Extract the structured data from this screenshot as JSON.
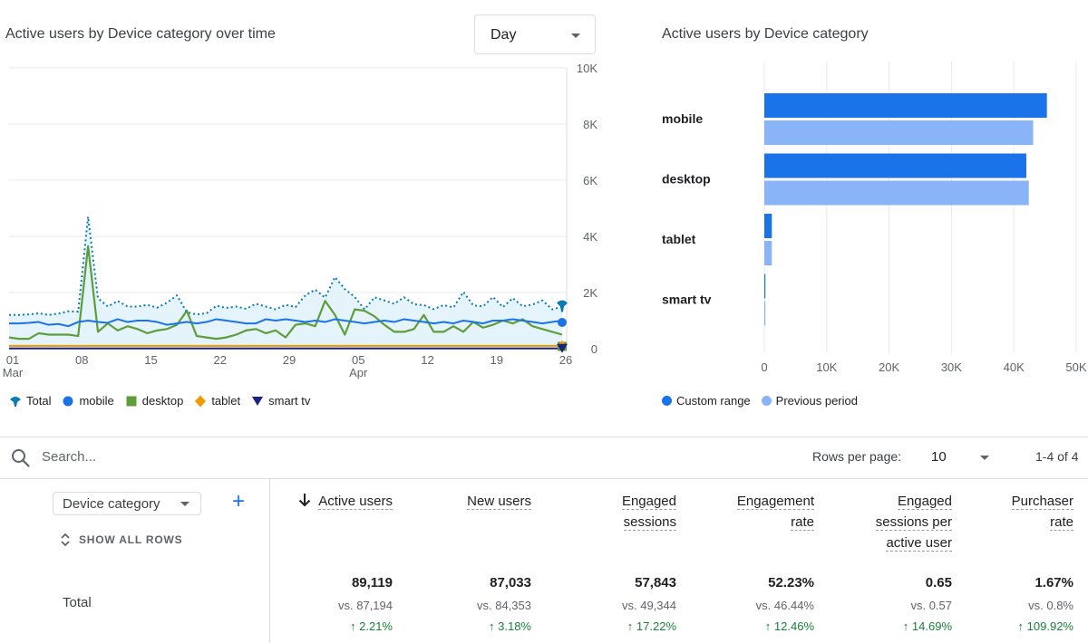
{
  "line_card": {
    "title": "Active users by Device category over time",
    "granularity": "Day",
    "legend": [
      {
        "label": "Total",
        "color": "#0b7cb3",
        "icon": "total-pin-icon"
      },
      {
        "label": "mobile",
        "color": "#1a73e8",
        "icon": "circle-icon"
      },
      {
        "label": "desktop",
        "color": "#5e9e3a",
        "icon": "square-icon"
      },
      {
        "label": "tablet",
        "color": "#f29900",
        "icon": "diamond-icon"
      },
      {
        "label": "smart tv",
        "color": "#1a237e",
        "icon": "triangle-down-icon"
      }
    ]
  },
  "bar_card": {
    "title": "Active users by Device category",
    "legend": [
      {
        "label": "Custom range",
        "color": "#1a73e8"
      },
      {
        "label": "Previous period",
        "color": "#8ab4f8"
      }
    ]
  },
  "chart_data": [
    {
      "type": "line",
      "title": "Active users by Device category over time",
      "x_ticks": [
        "01\nMar",
        "08",
        "15",
        "22",
        "29",
        "05\nApr",
        "12",
        "19",
        "26"
      ],
      "y_ticks": [
        "0",
        "2K",
        "4K",
        "6K",
        "8K",
        "10K"
      ],
      "ylim": [
        0,
        10000
      ],
      "x_range_days": [
        1,
        57
      ],
      "series": [
        {
          "name": "Total",
          "color": "#0b7cb3",
          "style": "dotted-area",
          "values": [
            1200,
            1200,
            1220,
            1260,
            1200,
            1250,
            1330,
            1320,
            4700,
            1800,
            1500,
            1700,
            1500,
            1500,
            1560,
            1460,
            1640,
            1900,
            1300,
            1220,
            1260,
            1530,
            1450,
            1500,
            1420,
            1600,
            1500,
            1400,
            1560,
            1480,
            1900,
            2100,
            1820,
            2550,
            2120,
            1840,
            1400,
            1830,
            1720,
            1600,
            1830,
            1580,
            1550,
            1410,
            1550,
            1470,
            2020,
            1540,
            1510,
            1840,
            1480,
            1800,
            1510,
            1570,
            1720,
            1400,
            1500
          ]
        },
        {
          "name": "mobile",
          "color": "#1a73e8",
          "style": "solid",
          "values": [
            900,
            900,
            920,
            950,
            850,
            880,
            800,
            950,
            1000,
            950,
            920,
            1050,
            950,
            1000,
            1000,
            950,
            850,
            900,
            950,
            900,
            950,
            1050,
            1000,
            950,
            900,
            900,
            1050,
            1000,
            1050,
            1000,
            950,
            1000,
            950,
            1050,
            1000,
            950,
            900,
            950,
            1000,
            950,
            1050,
            1000,
            950,
            900,
            950,
            900,
            1000,
            950,
            900,
            1000,
            1000,
            1050,
            1000,
            950,
            900,
            950,
            1000
          ]
        },
        {
          "name": "desktop",
          "color": "#5e9e3a",
          "style": "solid",
          "values": [
            400,
            350,
            350,
            550,
            500,
            500,
            500,
            450,
            3650,
            600,
            900,
            650,
            800,
            700,
            550,
            650,
            700,
            850,
            1350,
            450,
            400,
            350,
            400,
            500,
            650,
            700,
            550,
            650,
            400,
            850,
            900,
            800,
            1700,
            1200,
            500,
            1400,
            1350,
            1150,
            850,
            600,
            600,
            700,
            1200,
            600,
            600,
            800,
            600,
            950,
            750,
            850,
            1000,
            900,
            1050,
            800,
            700,
            600,
            500
          ]
        },
        {
          "name": "tablet",
          "color": "#f29900",
          "style": "solid",
          "values": [
            100,
            100,
            100,
            100,
            100,
            100,
            100,
            100,
            100,
            100,
            100,
            100,
            100,
            100,
            100,
            100,
            100,
            100,
            100,
            100,
            100,
            100,
            100,
            100,
            100,
            100,
            100,
            100,
            100,
            100,
            100,
            100,
            100,
            100,
            100,
            100,
            100,
            100,
            100,
            100,
            100,
            100,
            100,
            100,
            100,
            100,
            100,
            100,
            100,
            100,
            100,
            100,
            100,
            100,
            100,
            100,
            100
          ]
        },
        {
          "name": "smart tv",
          "color": "#1a237e",
          "style": "solid",
          "values": [
            10,
            10,
            10,
            10,
            10,
            10,
            10,
            10,
            10,
            10,
            10,
            10,
            10,
            10,
            10,
            10,
            10,
            10,
            10,
            10,
            10,
            10,
            10,
            10,
            10,
            10,
            10,
            10,
            10,
            10,
            10,
            10,
            10,
            10,
            10,
            10,
            10,
            10,
            10,
            10,
            10,
            10,
            10,
            10,
            10,
            10,
            10,
            10,
            10,
            10,
            10,
            10,
            10,
            10,
            10,
            10,
            10
          ]
        }
      ]
    },
    {
      "type": "bar",
      "orientation": "horizontal",
      "title": "Active users by Device category",
      "categories": [
        "mobile",
        "desktop",
        "tablet",
        "smart tv"
      ],
      "x_ticks": [
        "0",
        "10K",
        "20K",
        "30K",
        "40K",
        "50K"
      ],
      "xlim": [
        0,
        50000
      ],
      "series": [
        {
          "name": "Custom range",
          "color": "#1a73e8",
          "values": [
            45300,
            42000,
            1200,
            150
          ]
        },
        {
          "name": "Previous period",
          "color": "#8ab4f8",
          "values": [
            43100,
            42400,
            1200,
            150
          ]
        }
      ]
    }
  ],
  "toolbar": {
    "search_placeholder": "Search...",
    "rows_label": "Rows per page:",
    "rows_value": "10",
    "range": "1-4 of 4"
  },
  "table": {
    "dimension": "Device category",
    "show_all": "SHOW ALL ROWS",
    "total_label": "Total",
    "columns": [
      {
        "lines": [
          "Active users"
        ],
        "sorted": true,
        "value": "89,119",
        "vs": "vs. 87,194",
        "change": "2.21%"
      },
      {
        "lines": [
          "New users"
        ],
        "value": "87,033",
        "vs": "vs. 84,353",
        "change": "3.18%"
      },
      {
        "lines": [
          "Engaged",
          "sessions"
        ],
        "value": "57,843",
        "vs": "vs. 49,344",
        "change": "17.22%"
      },
      {
        "lines": [
          "Engagement",
          "rate"
        ],
        "value": "52.23%",
        "vs": "vs. 46.44%",
        "change": "12.46%"
      },
      {
        "lines": [
          "Engaged",
          "sessions per",
          "active user"
        ],
        "value": "0.65",
        "vs": "vs. 0.57",
        "change": "14.69%"
      },
      {
        "lines": [
          "Purchaser",
          "rate"
        ],
        "value": "1.67%",
        "vs": "vs. 0.8%",
        "change": "109.92%"
      }
    ]
  }
}
